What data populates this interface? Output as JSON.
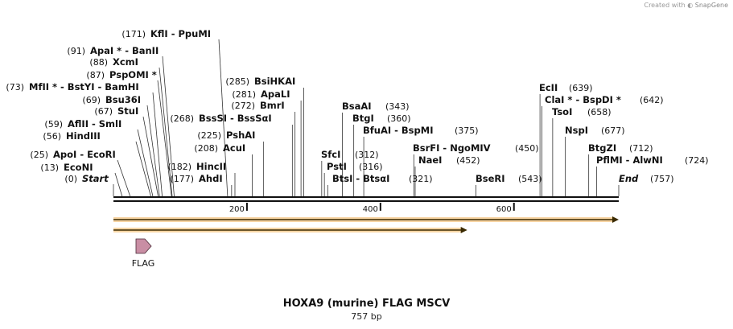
{
  "credit": {
    "prefix": "Created with",
    "brand": "SnapGene"
  },
  "title": "HOXA9 (murine) FLAG MSCV",
  "subtitle": "757 bp",
  "sequence": {
    "length": 757,
    "ticks": [
      200,
      400,
      600
    ]
  },
  "features": [
    {
      "name": "FLAG",
      "type": "arrow",
      "color": "#cc99aa"
    }
  ],
  "colors": {
    "orf": "#f2b35a",
    "orf_stroke": "#3a2a00",
    "feature": "#c98ea4"
  },
  "orfs": [
    {
      "start": 1,
      "end": 757
    },
    {
      "start": 1,
      "end": 530
    }
  ],
  "sites": {
    "left": [
      {
        "pos": "(0)",
        "label": "Start",
        "italic": true
      },
      {
        "pos": "(13)",
        "label": "EcoNI"
      },
      {
        "pos": "(25)",
        "label": "ApoI  -  EcoRI"
      },
      {
        "pos": "(56)",
        "label": "HindIII"
      },
      {
        "pos": "(59)",
        "label": "AflII  -  SmlI"
      },
      {
        "pos": "(67)",
        "label": "StuI"
      },
      {
        "pos": "(69)",
        "label": "Bsu36I"
      },
      {
        "pos": "(73)",
        "label": "MfII * - BstYI  -  BamHI"
      },
      {
        "pos": "(87)",
        "label": "PspOMI *"
      },
      {
        "pos": "(88)",
        "label": "XcmI"
      },
      {
        "pos": "(91)",
        "label": "ApaI *  -  BanII"
      },
      {
        "pos": "(171)",
        "label": "KflI  -  PpuMI"
      }
    ],
    "mid": [
      {
        "pos": "(177)",
        "label": "AhdI"
      },
      {
        "pos": "(182)",
        "label": "HincII"
      },
      {
        "pos": "(208)",
        "label": "AcuI"
      },
      {
        "pos": "(225)",
        "label": "PshAI"
      },
      {
        "pos": "(268)",
        "label": "BssSI  -  BssSαI"
      },
      {
        "pos": "(272)",
        "label": "BmrI"
      },
      {
        "pos": "(281)",
        "label": "ApaLI"
      },
      {
        "pos": "(285)",
        "label": "BsiHKAI"
      }
    ],
    "center": [
      {
        "pos": "(312)",
        "label": "SfcI"
      },
      {
        "pos": "(316)",
        "label": "PstI"
      },
      {
        "pos": "(321)",
        "label": "BtsI  -  BtsαI"
      },
      {
        "pos": "(343)",
        "label": "BsaAI"
      },
      {
        "pos": "(360)",
        "label": "BtgI"
      },
      {
        "pos": "(375)",
        "label": "BfuAI  -  BspMI"
      },
      {
        "pos": "(450)",
        "label": "BsrFI  -  NgoMIV"
      },
      {
        "pos": "(452)",
        "label": "NaeI"
      },
      {
        "pos": "(543)",
        "label": "BseRI"
      }
    ],
    "right": [
      {
        "pos": "(639)",
        "label": "EcII"
      },
      {
        "pos": "(642)",
        "label": "ClaI *  -  BspDI *"
      },
      {
        "pos": "(658)",
        "label": "TsoI"
      },
      {
        "pos": "(677)",
        "label": "NspI"
      },
      {
        "pos": "(712)",
        "label": "BtgZI"
      },
      {
        "pos": "(724)",
        "label": "PflMI  -  AlwNI"
      },
      {
        "pos": "(757)",
        "label": "End",
        "italic": true
      }
    ]
  }
}
